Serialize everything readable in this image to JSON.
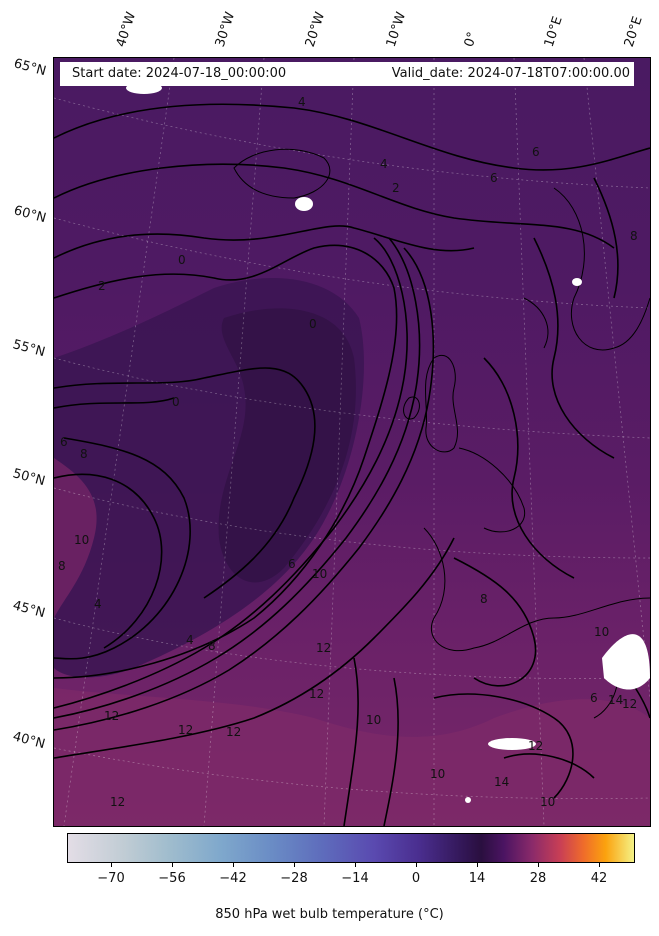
{
  "header": {
    "start_date": "Start date: 2024-07-18_00:00:00",
    "valid_date": "Valid_date: 2024-07-18T07:00:00.00"
  },
  "longitude_labels": [
    "40°W",
    "30°W",
    "20°W",
    "10°W",
    "0°",
    "10°E",
    "20°E"
  ],
  "latitude_labels": [
    "65°N",
    "60°N",
    "55°N",
    "50°N",
    "45°N",
    "40°N"
  ],
  "colorbar": {
    "ticks": [
      "−70",
      "−56",
      "−42",
      "−28",
      "−14",
      "0",
      "14",
      "28",
      "42"
    ],
    "title": "850 hPa wet bulb temperature (°C)"
  },
  "contour_labels": [
    "4",
    "6",
    "4",
    "2",
    "6",
    "8",
    "0",
    "2",
    "0",
    "0",
    "6",
    "8",
    "10",
    "8",
    "4",
    "4",
    "8",
    "6",
    "10",
    "12",
    "12",
    "12",
    "12",
    "12",
    "10",
    "8",
    "10",
    "12",
    "14",
    "10",
    "12",
    "14",
    "12",
    "6",
    "10"
  ]
}
